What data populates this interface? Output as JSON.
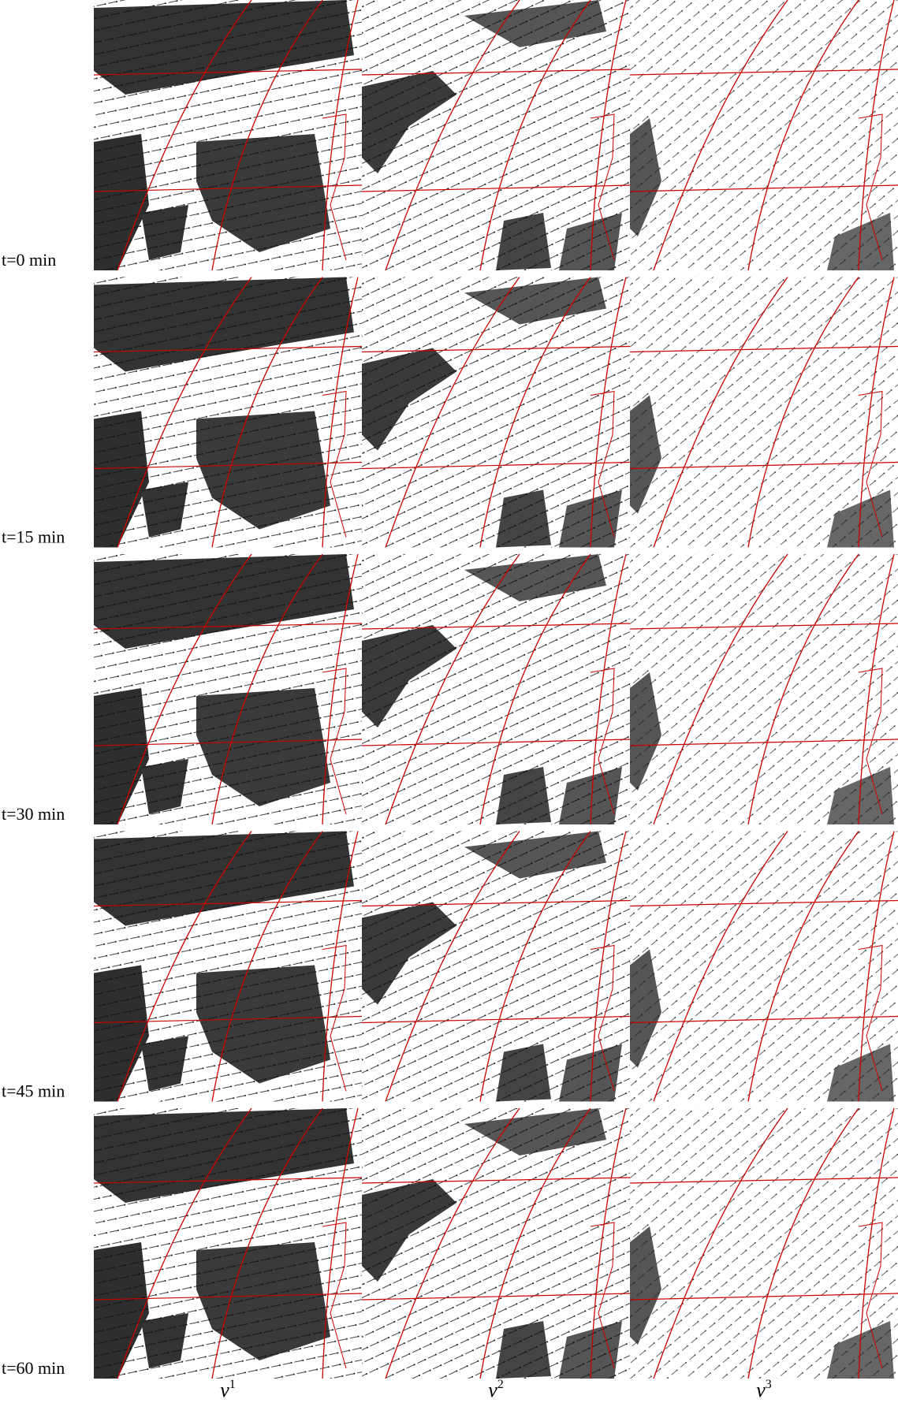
{
  "rows": [
    "t=0 min",
    "t=15 min",
    "t=30 min",
    "t=45 min",
    "t=60 min"
  ],
  "columns": [
    {
      "symbol": "v",
      "superscript": "1"
    },
    {
      "symbol": "v",
      "superscript": "2"
    },
    {
      "symbol": "v",
      "superscript": "3"
    }
  ]
}
